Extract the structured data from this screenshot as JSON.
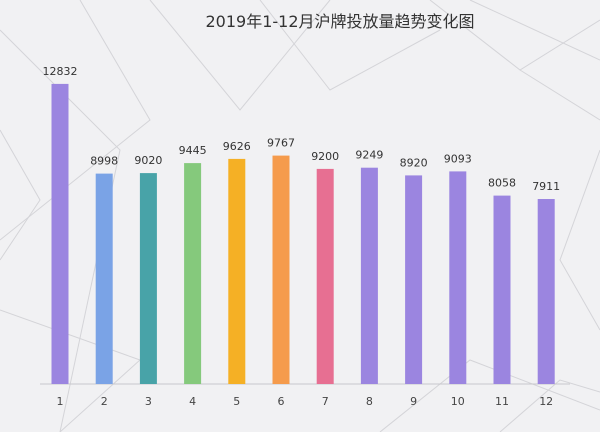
{
  "chart_data": {
    "type": "bar",
    "title": "2019年1-12月沪牌投放量趋势变化图",
    "categories": [
      "1",
      "2",
      "3",
      "4",
      "5",
      "6",
      "7",
      "8",
      "9",
      "10",
      "11",
      "12"
    ],
    "values": [
      12832,
      8998,
      9020,
      9445,
      9626,
      9767,
      9200,
      9249,
      8920,
      9093,
      8058,
      7911
    ],
    "colors": [
      "#9b85e0",
      "#7aa3e6",
      "#48a3a8",
      "#85c97c",
      "#f5b025",
      "#f59b4c",
      "#e76f92",
      "#9b85e0",
      "#9b85e0",
      "#9b85e0",
      "#9b85e0",
      "#9b85e0"
    ],
    "ylim": [
      0,
      13000
    ],
    "grid": false,
    "legend": "none",
    "xlabel": "",
    "ylabel": ""
  }
}
